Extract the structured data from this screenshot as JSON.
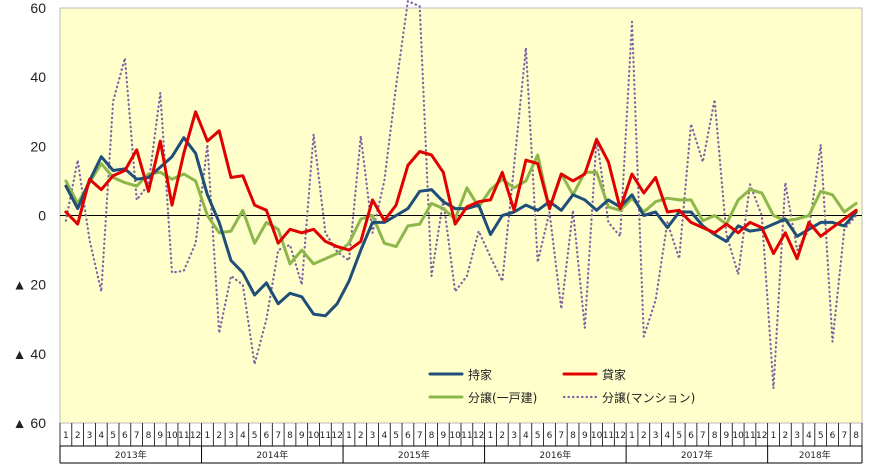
{
  "chart_data": {
    "type": "line",
    "y_ticks": [
      "60",
      "40",
      "20",
      "0",
      "▲ 20",
      "▲ 40",
      "▲ 60"
    ],
    "ylim": [
      -60,
      60
    ],
    "months": [
      "1",
      "2",
      "3",
      "4",
      "5",
      "6",
      "7",
      "8",
      "9",
      "10",
      "11",
      "12",
      "1",
      "2",
      "3",
      "4",
      "5",
      "6",
      "7",
      "8",
      "9",
      "10",
      "11",
      "12",
      "1",
      "2",
      "3",
      "4",
      "5",
      "6",
      "7",
      "8",
      "9",
      "10",
      "11",
      "12",
      "1",
      "2",
      "3",
      "4",
      "5",
      "6",
      "7",
      "8",
      "9",
      "10",
      "11",
      "12",
      "1",
      "2",
      "3",
      "4",
      "5",
      "6",
      "7",
      "8",
      "9",
      "10",
      "11",
      "12",
      "1",
      "2",
      "3",
      "4",
      "5",
      "6",
      "7",
      "8"
    ],
    "years": [
      {
        "label": "2013年",
        "count": 12
      },
      {
        "label": "2014年",
        "count": 12
      },
      {
        "label": "2015年",
        "count": 12
      },
      {
        "label": "2016年",
        "count": 12
      },
      {
        "label": "2017年",
        "count": 12
      },
      {
        "label": "2018年",
        "count": 8
      }
    ],
    "grid": false,
    "plot_background": "#ffffcc",
    "legend_position": "bottom-right inside plot",
    "series": [
      {
        "name": "持家",
        "color": "#1f4e79",
        "style": "solid",
        "values": [
          8.5,
          2,
          10,
          17,
          13,
          13.5,
          10.5,
          11,
          14,
          17,
          22.5,
          18,
          6,
          -2,
          -13,
          -16.5,
          -23,
          -19.5,
          -25.5,
          -22.5,
          -23.5,
          -28.5,
          -29,
          -25.5,
          -19,
          -10,
          -2,
          -2,
          0,
          2,
          7,
          7.5,
          4,
          2,
          2,
          3,
          -5.5,
          0,
          1,
          3,
          1.5,
          4,
          1.5,
          6,
          4.5,
          1.5,
          4.5,
          2.5,
          6,
          0,
          1,
          -3.5,
          1,
          1,
          -3,
          -5.5,
          -7.5,
          -3,
          -4.5,
          -4,
          -2.5,
          -1,
          -6,
          -4,
          -2,
          -2,
          -3,
          1
        ]
      },
      {
        "name": "貸家",
        "color": "#e00000",
        "style": "solid",
        "values": [
          1,
          -2.5,
          10.5,
          7.5,
          11.5,
          13,
          19,
          7,
          21.5,
          3,
          18,
          30,
          21.5,
          24.5,
          11,
          11.5,
          3,
          1.5,
          -8,
          -4,
          -5,
          -4,
          -7.5,
          -9,
          -10,
          -7.5,
          4.5,
          -1.5,
          3,
          14.5,
          18.5,
          17.5,
          12.5,
          -2.5,
          2.5,
          4,
          4.5,
          12.5,
          1.5,
          16,
          15,
          2,
          12,
          10,
          12,
          22,
          15.5,
          2,
          12,
          6.5,
          11,
          1,
          1.5,
          -2,
          -3.5,
          -5,
          -2.5,
          -5,
          -2,
          -3.5,
          -11,
          -5,
          -12.5,
          -2,
          -6,
          -3.5,
          -1,
          1.5
        ]
      },
      {
        "name": "分譲(一戸建)",
        "color": "#8db64b",
        "style": "solid",
        "values": [
          10,
          3.5,
          9.5,
          15,
          11,
          9.5,
          8.5,
          12,
          12.5,
          10.5,
          12,
          10,
          0,
          -5,
          -4.5,
          1.5,
          -8,
          -2,
          -4,
          -14,
          -10,
          -14,
          -12.5,
          -11,
          -8,
          -1,
          0,
          -8,
          -9,
          -3,
          -2.5,
          3.5,
          2,
          -1,
          8,
          2.5,
          7.5,
          10.5,
          8,
          10,
          17.5,
          2,
          12,
          6,
          12.5,
          12.5,
          2.5,
          1.5,
          5,
          1,
          4,
          5,
          4.5,
          4.5,
          -1.5,
          0,
          -2.5,
          4.5,
          7.5,
          6.5,
          0,
          -1.5,
          -1,
          0,
          7,
          6,
          1,
          3.5
        ]
      },
      {
        "name": "分譲(マンション)",
        "color": "#8064a2",
        "style": "dotted",
        "values": [
          -1.5,
          16,
          -7,
          -22,
          33,
          45.5,
          4.5,
          9,
          35.5,
          -16.5,
          -16,
          -8,
          20.5,
          -34,
          -17.5,
          -20,
          -43,
          -30,
          -10,
          -8.5,
          -20,
          23.5,
          -5,
          -10.5,
          -13,
          23,
          -5,
          10,
          37.5,
          62,
          60.5,
          -17.5,
          4.5,
          -22,
          -17.5,
          -4.5,
          -12,
          -19,
          14.5,
          48.5,
          -13.5,
          1,
          -27,
          1.5,
          -32.5,
          22.5,
          -2,
          -6,
          56,
          -35,
          -24.5,
          -2,
          -12.5,
          26.5,
          15.5,
          33.5,
          -5.5,
          -17,
          9,
          0,
          -50,
          9.5,
          -10,
          -4,
          20.5,
          -36.5,
          -4,
          0
        ]
      }
    ]
  }
}
